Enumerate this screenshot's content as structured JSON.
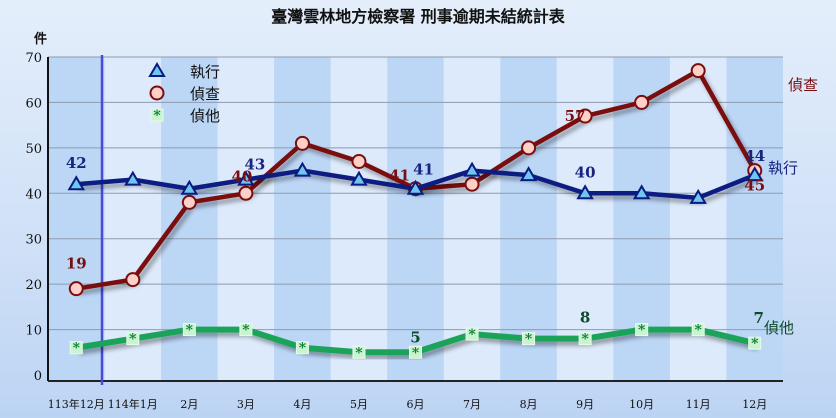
{
  "chart_data": {
    "type": "line",
    "title": "臺灣雲林地方檢察署  刑事逾期未結統計表",
    "ylabel": "件",
    "xlabel": "",
    "ylim": [
      0,
      70
    ],
    "yticks": [
      0,
      10,
      20,
      30,
      40,
      50,
      60,
      70
    ],
    "grid": true,
    "legend_position": "upper-left",
    "categories": [
      "113年12月",
      "114年1月",
      "2月",
      "3月",
      "4月",
      "5月",
      "6月",
      "7月",
      "8月",
      "9月",
      "10月",
      "11月",
      "12月"
    ],
    "series": [
      {
        "name": "執行",
        "color": "#0a1a80",
        "marker": "triangle",
        "marker_fill": "#6fc6ee",
        "values": [
          42,
          43,
          41,
          43,
          45,
          43,
          41,
          45,
          44,
          40,
          40,
          39,
          44
        ],
        "end_label": "執行"
      },
      {
        "name": "偵查",
        "color": "#7a0e0e",
        "marker": "circle",
        "marker_fill": "#ffd0c8",
        "values": [
          19,
          21,
          38,
          40,
          51,
          47,
          41,
          42,
          50,
          57,
          60,
          67,
          45
        ],
        "end_label": "偵查"
      },
      {
        "name": "偵他",
        "color": "#1aa35a",
        "marker": "asterisk-square",
        "marker_fill": "#c8f5d0",
        "values": [
          6,
          8,
          10,
          10,
          6,
          5,
          5,
          9,
          8,
          8,
          10,
          10,
          7
        ],
        "end_label": "偵他"
      }
    ],
    "annotations": [
      {
        "series": "執行",
        "index": 0,
        "text": "42"
      },
      {
        "series": "執行",
        "index": 3,
        "text": "43"
      },
      {
        "series": "執行",
        "index": 6,
        "text": "41"
      },
      {
        "series": "執行",
        "index": 9,
        "text": "40"
      },
      {
        "series": "執行",
        "index": 12,
        "text": "44"
      },
      {
        "series": "偵查",
        "index": 0,
        "text": "19"
      },
      {
        "series": "偵查",
        "index": 3,
        "text": "40"
      },
      {
        "series": "偵查",
        "index": 6,
        "text": "41"
      },
      {
        "series": "偵查",
        "index": 9,
        "text": "57"
      },
      {
        "series": "偵查",
        "index": 12,
        "text": "45"
      },
      {
        "series": "偵他",
        "index": 6,
        "text": "5"
      },
      {
        "series": "偵他",
        "index": 9,
        "text": "8"
      },
      {
        "series": "偵他",
        "index": 12,
        "text": "7"
      }
    ],
    "vertical_marker_after_index": 0
  },
  "title": "臺灣雲林地方檢察署  刑事逾期未結統計表",
  "unit_label": "件",
  "legend": [
    {
      "label": "執行"
    },
    {
      "label": "偵查"
    },
    {
      "label": "偵他"
    }
  ]
}
